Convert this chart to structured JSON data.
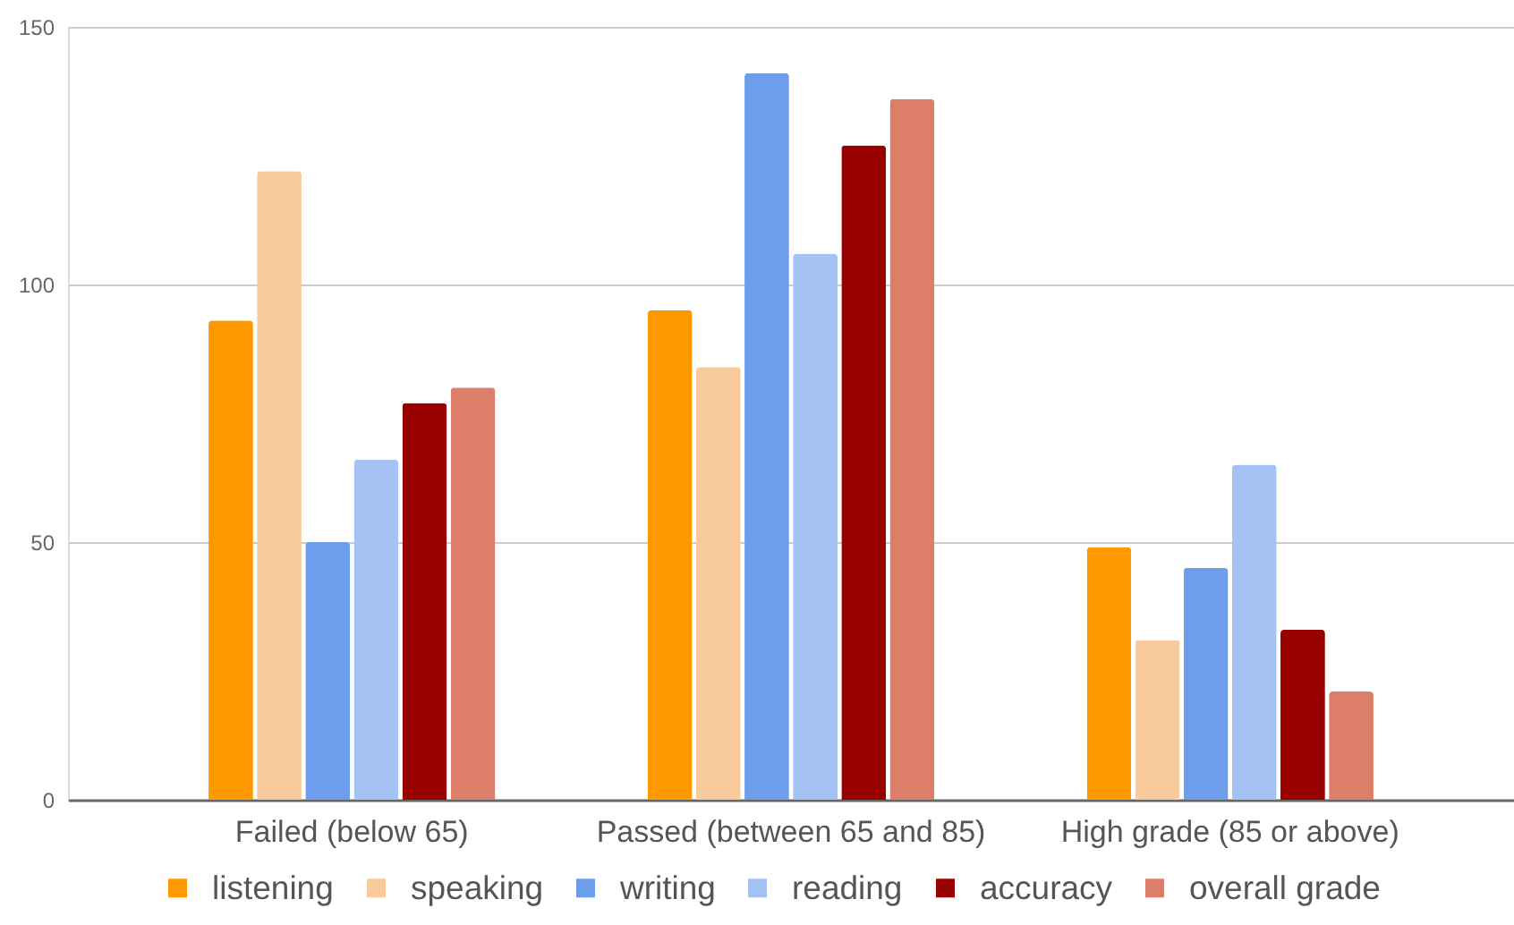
{
  "chart_data": {
    "type": "bar",
    "categories": [
      "Failed (below 65)",
      "Passed (between 65 and 85)",
      "High grade (85 or above)"
    ],
    "series": [
      {
        "name": "listening",
        "color": "#ff9900",
        "values": [
          93,
          95,
          49
        ]
      },
      {
        "name": "speaking",
        "color": "#f9cb9c",
        "values": [
          122,
          84,
          31
        ]
      },
      {
        "name": "writing",
        "color": "#6d9eeb",
        "values": [
          50,
          141,
          45
        ]
      },
      {
        "name": "reading",
        "color": "#a4c2f4",
        "values": [
          66,
          106,
          65
        ]
      },
      {
        "name": "accuracy",
        "color": "#990000",
        "values": [
          77,
          127,
          33
        ]
      },
      {
        "name": "overall grade",
        "color": "#dd7e6b",
        "values": [
          80,
          136,
          21
        ]
      }
    ],
    "ylim": [
      0,
      150
    ],
    "yticks": [
      0,
      50,
      100,
      150
    ],
    "grid": "y",
    "legend": "bottom"
  }
}
